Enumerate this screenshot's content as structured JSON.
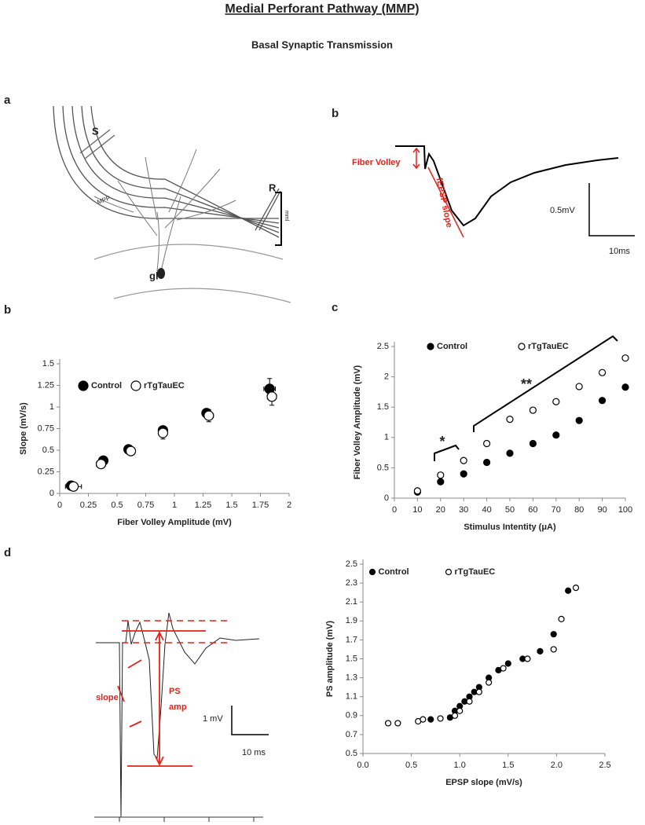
{
  "title": "Medial Perforant Pathway (MMP)",
  "subtitle": "Basal Synaptic Transmission",
  "panel_labels": [
    "a",
    "b",
    "b",
    "c",
    "d"
  ],
  "diagram": {
    "labels": [
      "S",
      "MPP",
      "R",
      "mml",
      "gl"
    ]
  },
  "trace_b": {
    "fiber_volley": "Fiber Volley",
    "slope": "fEPSP slope",
    "scale_y": "0.5mV",
    "scale_x": "10ms"
  },
  "trace_d": {
    "slope": "slope",
    "ps": "PS",
    "amp": "amp",
    "scale_y": "1 mV",
    "scale_x": "10 ms"
  },
  "chart_data": [
    {
      "type": "scatter",
      "x_label": "Fiber Volley Amplitude (mV)",
      "y_label": "Slope (mV/s)",
      "xlim": [
        0,
        2
      ],
      "xticks": [
        0,
        0.25,
        0.5,
        0.75,
        1,
        1.25,
        1.5,
        1.75,
        2
      ],
      "ylim": [
        0,
        1.5
      ],
      "yticks": [
        0,
        0.25,
        0.5,
        0.75,
        1,
        1.25,
        1.5
      ],
      "legend": "upper left",
      "series": [
        {
          "name": "Control",
          "color": "#000000",
          "filled": true,
          "x": [
            0.1,
            0.38,
            0.6,
            0.9,
            1.28,
            1.83
          ],
          "values": [
            0.09,
            0.38,
            0.51,
            0.73,
            0.93,
            1.21
          ],
          "xerr": [
            0.04,
            0.03,
            0.02,
            0.02,
            0.03,
            0.05
          ],
          "yerr": [
            0.02,
            0.02,
            0.02,
            0.04,
            0.05,
            0.12
          ]
        },
        {
          "name": "rTgTauEC",
          "color": "#000000",
          "filled": false,
          "x": [
            0.12,
            0.36,
            0.62,
            0.9,
            1.3,
            1.85
          ],
          "values": [
            0.08,
            0.34,
            0.49,
            0.7,
            0.9,
            1.12
          ],
          "xerr": [
            0.07,
            0.04,
            0.02,
            0.02,
            0.04,
            0.04
          ],
          "yerr": [
            0.02,
            0.03,
            0.02,
            0.07,
            0.07,
            0.1
          ]
        }
      ]
    },
    {
      "type": "scatter",
      "x_label": "Stimulus Intentity (μA)",
      "y_label": "Fiber Volley Amplitude (mV)",
      "xlim": [
        0,
        100
      ],
      "xticks": [
        0,
        10,
        20,
        30,
        40,
        50,
        60,
        70,
        80,
        90,
        100
      ],
      "ylim": [
        0,
        2.5
      ],
      "yticks": [
        0,
        0.5,
        1,
        1.5,
        2,
        2.5
      ],
      "legend": "top",
      "x": [
        10,
        20,
        30,
        40,
        50,
        60,
        70,
        80,
        90,
        100
      ],
      "series": [
        {
          "name": "Control",
          "color": "#000000",
          "filled": true,
          "values": [
            0.1,
            0.27,
            0.4,
            0.59,
            0.74,
            0.9,
            1.04,
            1.28,
            1.61,
            1.83
          ]
        },
        {
          "name": "rTgTauEC",
          "color": "#000000",
          "filled": false,
          "values": [
            0.12,
            0.38,
            0.62,
            0.9,
            1.3,
            1.45,
            1.59,
            1.84,
            2.07,
            2.31
          ]
        }
      ],
      "annotations": [
        "*",
        "**"
      ]
    },
    {
      "type": "scatter",
      "x_label": "EPSP slope (mV/s)",
      "y_label": "PS amplitude (mV)",
      "xlim": [
        0,
        2.5
      ],
      "xticks": [
        {
          "value": 0,
          "label": "0.0"
        },
        0.5,
        {
          "value": 1,
          "label": "1.0"
        },
        1.5,
        {
          "value": 2,
          "label": "2.0"
        },
        2.5
      ],
      "ylim": [
        0.5,
        2.5
      ],
      "yticks": [
        0.5,
        0.7,
        0.9,
        1.1,
        1.3,
        1.5,
        1.7,
        1.9,
        2.1,
        2.3,
        2.5
      ],
      "legend": "upper left",
      "series": [
        {
          "name": "Control",
          "color": "#000000",
          "filled": true,
          "x": [
            0.7,
            0.9,
            0.95,
            1.0,
            1.05,
            1.1,
            1.15,
            1.2,
            1.3,
            1.4,
            1.5,
            1.65,
            1.83,
            1.97,
            2.12
          ],
          "values": [
            0.86,
            0.88,
            0.95,
            1.0,
            1.05,
            1.1,
            1.15,
            1.2,
            1.3,
            1.38,
            1.45,
            1.5,
            1.58,
            1.76,
            2.22
          ]
        },
        {
          "name": "rTgTauEC",
          "color": "#000000",
          "filled": false,
          "x": [
            0.26,
            0.36,
            0.57,
            0.62,
            0.8,
            0.95,
            1.0,
            1.1,
            1.2,
            1.3,
            1.45,
            1.7,
            1.97,
            2.05,
            2.2
          ],
          "values": [
            0.82,
            0.82,
            0.84,
            0.86,
            0.87,
            0.9,
            0.95,
            1.05,
            1.15,
            1.25,
            1.4,
            1.5,
            1.6,
            1.92,
            2.25
          ]
        }
      ]
    }
  ]
}
